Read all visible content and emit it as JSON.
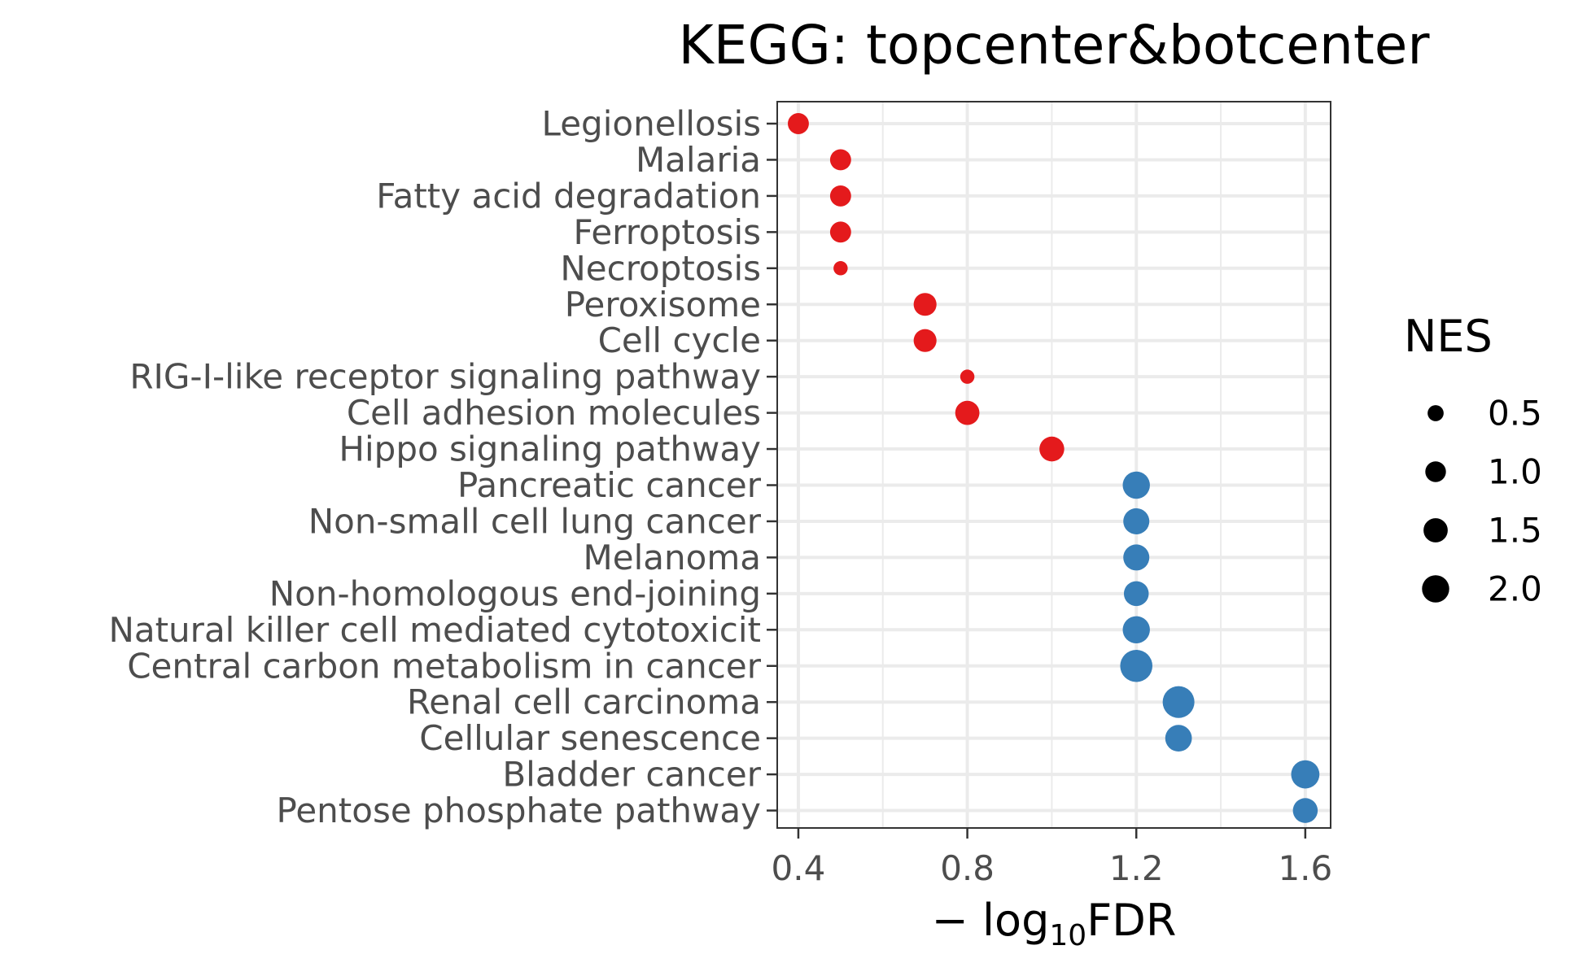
{
  "chart_data": {
    "type": "scatter",
    "title": "KEGG: topcenter&botcenter",
    "xlabel": "− log10FDR",
    "xlabel_parts": {
      "prefix": "− log",
      "subscript": "10",
      "suffix": "FDR"
    },
    "ylabel": "",
    "xlim": [
      0.35,
      1.66
    ],
    "xticks": [
      0.4,
      0.8,
      1.2,
      1.6
    ],
    "xtick_labels": [
      "0.4",
      "0.8",
      "1.2",
      "1.6"
    ],
    "grid": true,
    "legend": {
      "title": "NES",
      "placement": "right",
      "entries": [
        {
          "label": "0.5",
          "value": 0.5
        },
        {
          "label": "1.0",
          "value": 1.0
        },
        {
          "label": "1.5",
          "value": 1.5
        },
        {
          "label": "2.0",
          "value": 2.0
        }
      ]
    },
    "colors": {
      "positive": "#e41a1c",
      "negative": "#377eb8"
    },
    "points": [
      {
        "term": "Legionellosis",
        "x": 0.4,
        "nes": 1.05,
        "group": "positive"
      },
      {
        "term": "Malaria",
        "x": 0.5,
        "nes": 1.05,
        "group": "positive"
      },
      {
        "term": "Fatty acid degradation",
        "x": 0.5,
        "nes": 1.05,
        "group": "positive"
      },
      {
        "term": "Ferroptosis",
        "x": 0.5,
        "nes": 1.05,
        "group": "positive"
      },
      {
        "term": "Necroptosis",
        "x": 0.5,
        "nes": 0.35,
        "group": "positive"
      },
      {
        "term": "Peroxisome",
        "x": 0.7,
        "nes": 1.3,
        "group": "positive"
      },
      {
        "term": "Cell cycle",
        "x": 0.7,
        "nes": 1.3,
        "group": "positive"
      },
      {
        "term": "RIG-I-like receptor signaling pathway",
        "x": 0.8,
        "nes": 0.35,
        "group": "positive"
      },
      {
        "term": "Cell adhesion molecules",
        "x": 0.8,
        "nes": 1.5,
        "group": "positive"
      },
      {
        "term": "Hippo signaling pathway",
        "x": 1.0,
        "nes": 1.6,
        "group": "positive"
      },
      {
        "term": "Pancreatic cancer",
        "x": 1.2,
        "nes": 2.0,
        "group": "negative"
      },
      {
        "term": "Non-small cell lung cancer",
        "x": 1.2,
        "nes": 1.8,
        "group": "negative"
      },
      {
        "term": "Melanoma",
        "x": 1.2,
        "nes": 1.8,
        "group": "negative"
      },
      {
        "term": "Non-homologous end-joining",
        "x": 1.2,
        "nes": 1.6,
        "group": "negative"
      },
      {
        "term": "Natural killer cell mediated cytotoxicit",
        "x": 1.2,
        "nes": 2.0,
        "group": "negative"
      },
      {
        "term": "Central carbon metabolism in cancer",
        "x": 1.2,
        "nes": 3.0,
        "group": "negative"
      },
      {
        "term": "Renal cell carcinoma",
        "x": 1.3,
        "nes": 2.9,
        "group": "negative"
      },
      {
        "term": "Cellular senescence",
        "x": 1.3,
        "nes": 1.9,
        "group": "negative"
      },
      {
        "term": "Bladder cancer",
        "x": 1.6,
        "nes": 2.2,
        "group": "negative"
      },
      {
        "term": "Pentose phosphate pathway",
        "x": 1.6,
        "nes": 1.6,
        "group": "negative"
      }
    ]
  }
}
